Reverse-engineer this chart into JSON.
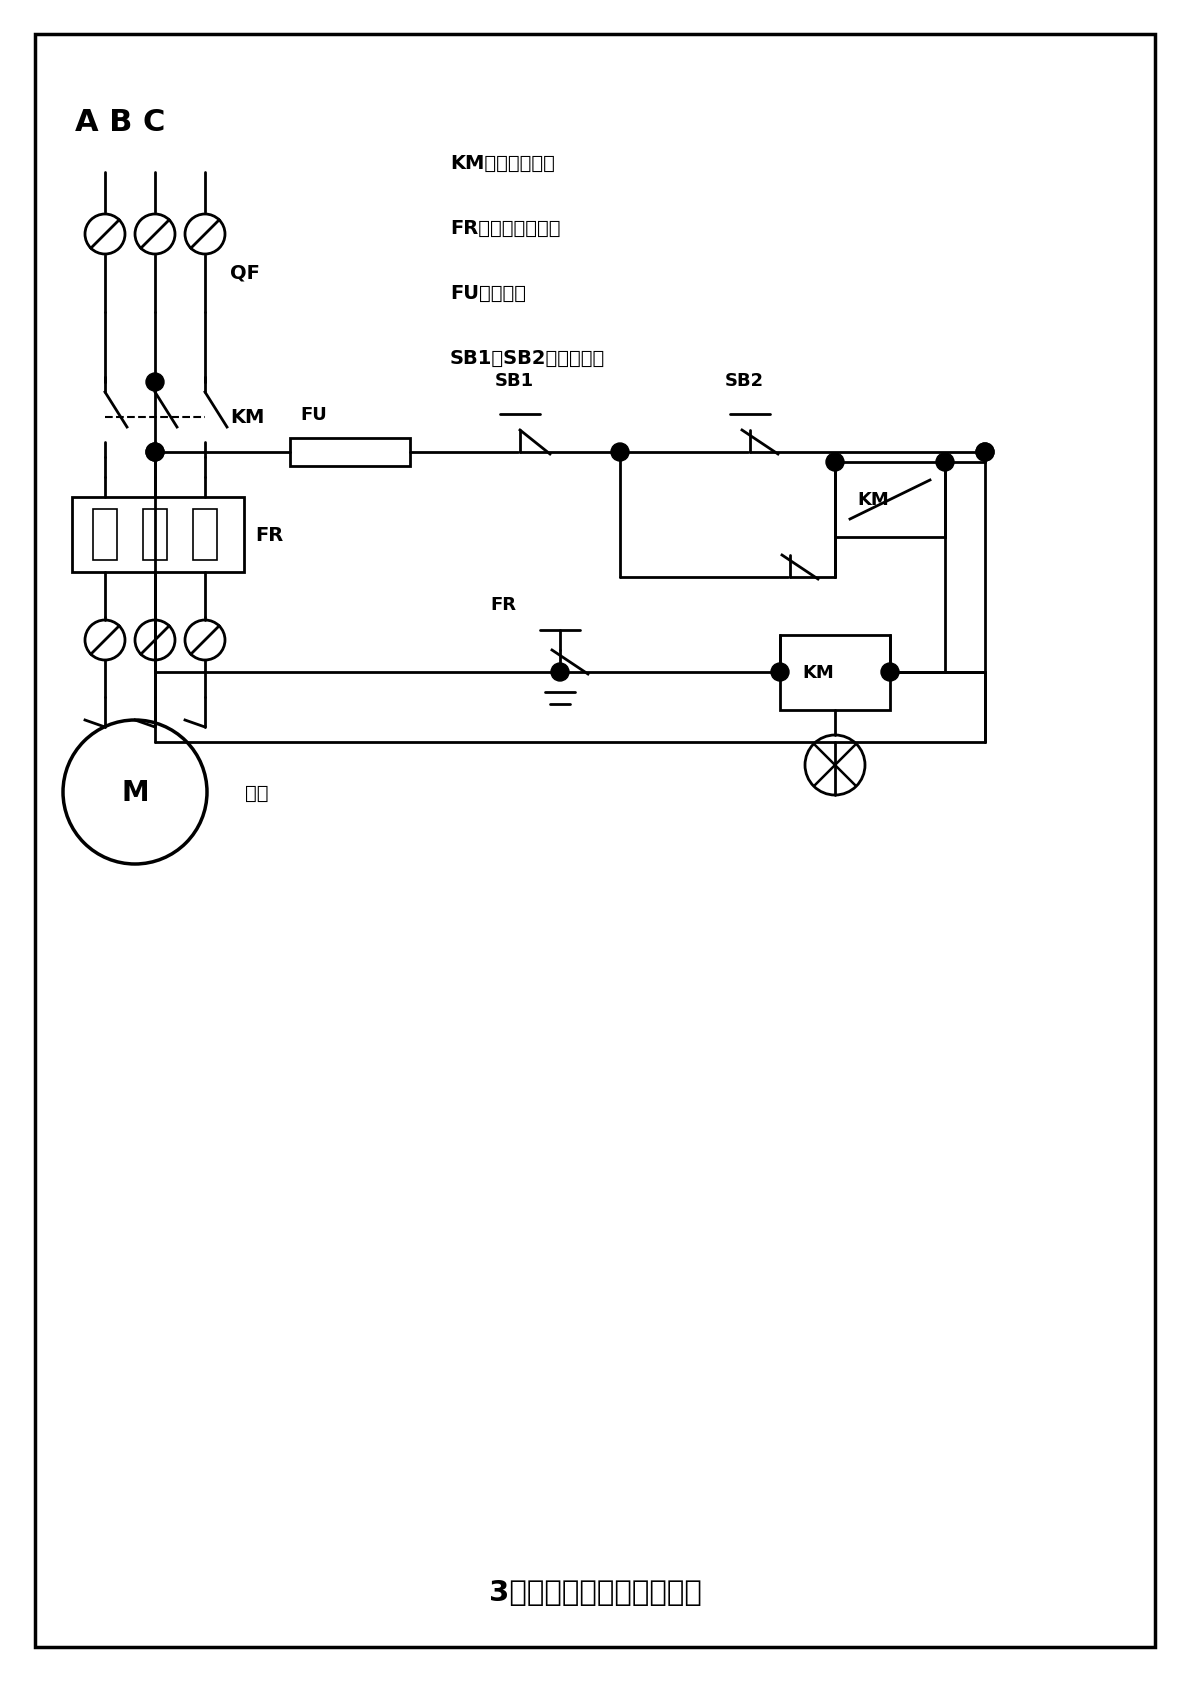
{
  "title": "3相电机启、停控制接线图",
  "legend_km": "KM：交流接触器",
  "legend_fr": "FR：热过载继电器",
  "legend_fu": "FU：保险丝",
  "legend_sb": "SB1、SB2：启停按钮",
  "abc_label": "A B C",
  "qf_label": "QF",
  "fu_label": "FU",
  "sb1_label": "SB1",
  "sb2_label": "SB2",
  "km_label": "KM",
  "fr_label": "FR",
  "motor_label": "M",
  "motor_text": "电机",
  "bg_color": "#ffffff",
  "line_color": "#000000",
  "border_color": "#000000",
  "lw": 2.0,
  "dot_r": 0.09
}
